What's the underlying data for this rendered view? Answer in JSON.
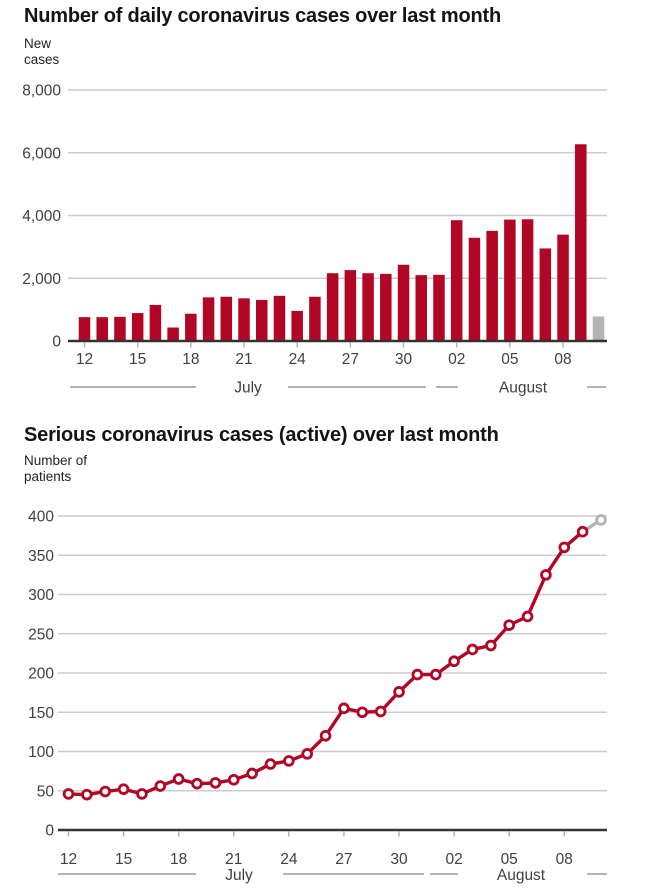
{
  "charts": [
    {
      "title": "Number of daily coronavirus cases over last month",
      "unit_label": "New\ncases"
    },
    {
      "title": "Serious coronavirus cases (active) over last month",
      "unit_label": "Number of\npatients"
    }
  ],
  "chart_data": [
    {
      "type": "bar",
      "title": "Number of daily coronavirus cases over last month",
      "ylabel": "New cases",
      "categories": [
        "12 Jul",
        "13 Jul",
        "14 Jul",
        "15 Jul",
        "16 Jul",
        "17 Jul",
        "18 Jul",
        "19 Jul",
        "20 Jul",
        "21 Jul",
        "22 Jul",
        "23 Jul",
        "24 Jul",
        "25 Jul",
        "26 Jul",
        "27 Jul",
        "28 Jul",
        "29 Jul",
        "30 Jul",
        "31 Jul",
        "01 Aug",
        "02 Aug",
        "03 Aug",
        "04 Aug",
        "05 Aug",
        "06 Aug",
        "07 Aug",
        "08 Aug",
        "09 Aug",
        "10 Aug"
      ],
      "values": [
        760,
        760,
        770,
        890,
        1150,
        430,
        870,
        1390,
        1410,
        1360,
        1310,
        1440,
        960,
        1410,
        2160,
        2260,
        2160,
        2140,
        2430,
        2100,
        2110,
        3850,
        3290,
        3510,
        3870,
        3880,
        2950,
        3390,
        6270,
        780
      ],
      "ylim": [
        0,
        8000
      ],
      "yticks": [
        0,
        2000,
        4000,
        6000,
        8000
      ],
      "ytick_labels": [
        "0",
        "2,000",
        "4,000",
        "6,000",
        "8,000"
      ],
      "xtick_indices": [
        0,
        3,
        6,
        9,
        12,
        15,
        18,
        21,
        24,
        27
      ],
      "xtick_labels": [
        "12",
        "15",
        "18",
        "21",
        "24",
        "27",
        "30",
        "02",
        "05",
        "08"
      ],
      "months": [
        "July",
        "August"
      ],
      "grid": true,
      "legend": "none",
      "last_value_incomplete": true,
      "colors": {
        "bar": "#b10626",
        "incomplete_bar": "#b3b3b3",
        "grid": "#cccccc",
        "axis": "#333333",
        "text": "#404040"
      }
    },
    {
      "type": "line",
      "title": "Serious coronavirus cases (active) over last month",
      "ylabel": "Number of patients",
      "categories": [
        "12 Jul",
        "13 Jul",
        "14 Jul",
        "15 Jul",
        "16 Jul",
        "17 Jul",
        "18 Jul",
        "19 Jul",
        "20 Jul",
        "21 Jul",
        "22 Jul",
        "23 Jul",
        "24 Jul",
        "25 Jul",
        "26 Jul",
        "27 Jul",
        "28 Jul",
        "29 Jul",
        "30 Jul",
        "31 Jul",
        "01 Aug",
        "02 Aug",
        "03 Aug",
        "04 Aug",
        "05 Aug",
        "06 Aug",
        "07 Aug",
        "08 Aug",
        "09 Aug",
        "10 Aug"
      ],
      "values": [
        46,
        45,
        49,
        52,
        46,
        56,
        65,
        59,
        60,
        64,
        72,
        84,
        88,
        97,
        120,
        155,
        150,
        151,
        176,
        198,
        198,
        215,
        230,
        235,
        261,
        272,
        325,
        360,
        380,
        395
      ],
      "ylim": [
        0,
        400
      ],
      "yticks": [
        0,
        50,
        100,
        150,
        200,
        250,
        300,
        350,
        400
      ],
      "ytick_labels": [
        "0",
        "50",
        "100",
        "150",
        "200",
        "250",
        "300",
        "350",
        "400"
      ],
      "xtick_indices": [
        0,
        3,
        6,
        9,
        12,
        15,
        18,
        21,
        24,
        27
      ],
      "xtick_labels": [
        "12",
        "15",
        "18",
        "21",
        "24",
        "27",
        "30",
        "02",
        "05",
        "08"
      ],
      "months": [
        "July",
        "August"
      ],
      "grid": true,
      "legend": "none",
      "last_value_provisional": true,
      "colors": {
        "line": "#b10626",
        "marker_fill": "#ffffff",
        "provisional": "#b3b3b3",
        "grid": "#cccccc",
        "axis": "#333333",
        "text": "#404040"
      }
    }
  ]
}
